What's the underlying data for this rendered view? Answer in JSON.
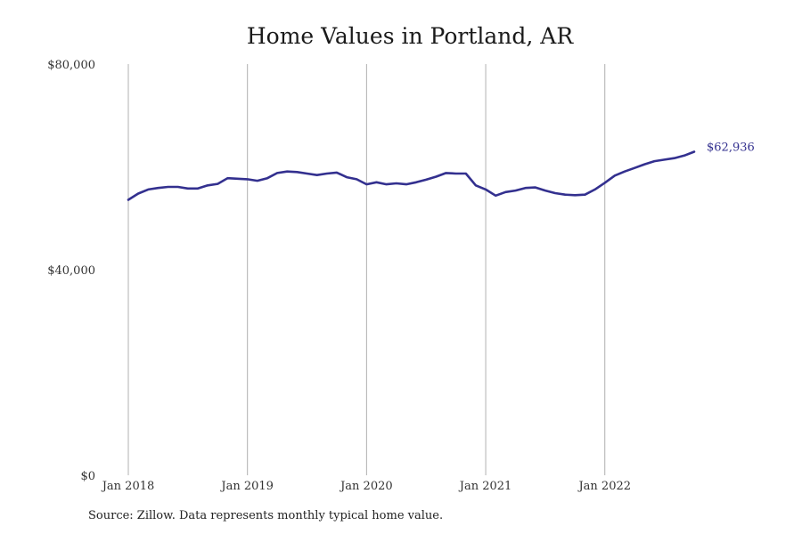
{
  "chart_data": {
    "type": "line",
    "title": "Home Values in Portland, AR",
    "source": "Source: Zillow. Data represents monthly typical home value.",
    "xlabel": "",
    "ylabel": "",
    "ylim": [
      0,
      80000
    ],
    "y_ticks": [
      {
        "value": 0,
        "label": "$0"
      },
      {
        "value": 40000,
        "label": "$40,000"
      },
      {
        "value": 80000,
        "label": "$80,000"
      }
    ],
    "x_ticks": [
      {
        "date": "2018-01",
        "label": "Jan 2018"
      },
      {
        "date": "2019-01",
        "label": "Jan 2019"
      },
      {
        "date": "2020-01",
        "label": "Jan 2020"
      },
      {
        "date": "2021-01",
        "label": "Jan 2021"
      },
      {
        "date": "2022-01",
        "label": "Jan 2022"
      }
    ],
    "grid": "vertical",
    "line_color": "#33308f",
    "end_label": "$62,936",
    "series": [
      {
        "x": [
          "2018-01",
          "2018-02",
          "2018-03",
          "2018-04",
          "2018-05",
          "2018-06",
          "2018-07",
          "2018-08",
          "2018-09",
          "2018-10",
          "2018-11",
          "2018-12",
          "2019-01",
          "2019-02",
          "2019-03",
          "2019-04",
          "2019-05",
          "2019-06",
          "2019-07",
          "2019-08",
          "2019-09",
          "2019-10",
          "2019-11",
          "2019-12",
          "2020-01",
          "2020-02",
          "2020-03",
          "2020-04",
          "2020-05",
          "2020-06",
          "2020-07",
          "2020-08",
          "2020-09",
          "2020-10",
          "2020-11",
          "2020-12",
          "2021-01",
          "2021-02",
          "2021-03",
          "2021-04",
          "2021-05",
          "2021-06",
          "2021-07",
          "2021-08",
          "2021-09",
          "2021-10",
          "2021-11",
          "2021-12",
          "2022-01",
          "2022-02",
          "2022-03",
          "2022-04",
          "2022-05",
          "2022-06",
          "2022-07",
          "2022-08",
          "2022-09",
          "2022-10"
        ],
        "values": [
          53600,
          54800,
          55600,
          55900,
          56100,
          56100,
          55800,
          55800,
          56400,
          56700,
          57800,
          57700,
          57600,
          57300,
          57800,
          58800,
          59100,
          59000,
          58700,
          58400,
          58700,
          58900,
          58000,
          57600,
          56600,
          57000,
          56600,
          56800,
          56600,
          57000,
          57500,
          58100,
          58800,
          58700,
          58700,
          56400,
          55600,
          54400,
          55100,
          55400,
          55900,
          56000,
          55400,
          54900,
          54600,
          54500,
          54600,
          55600,
          56900,
          58300,
          59100,
          59800,
          60500,
          61100,
          61400,
          61700,
          62200,
          62936
        ]
      }
    ]
  }
}
